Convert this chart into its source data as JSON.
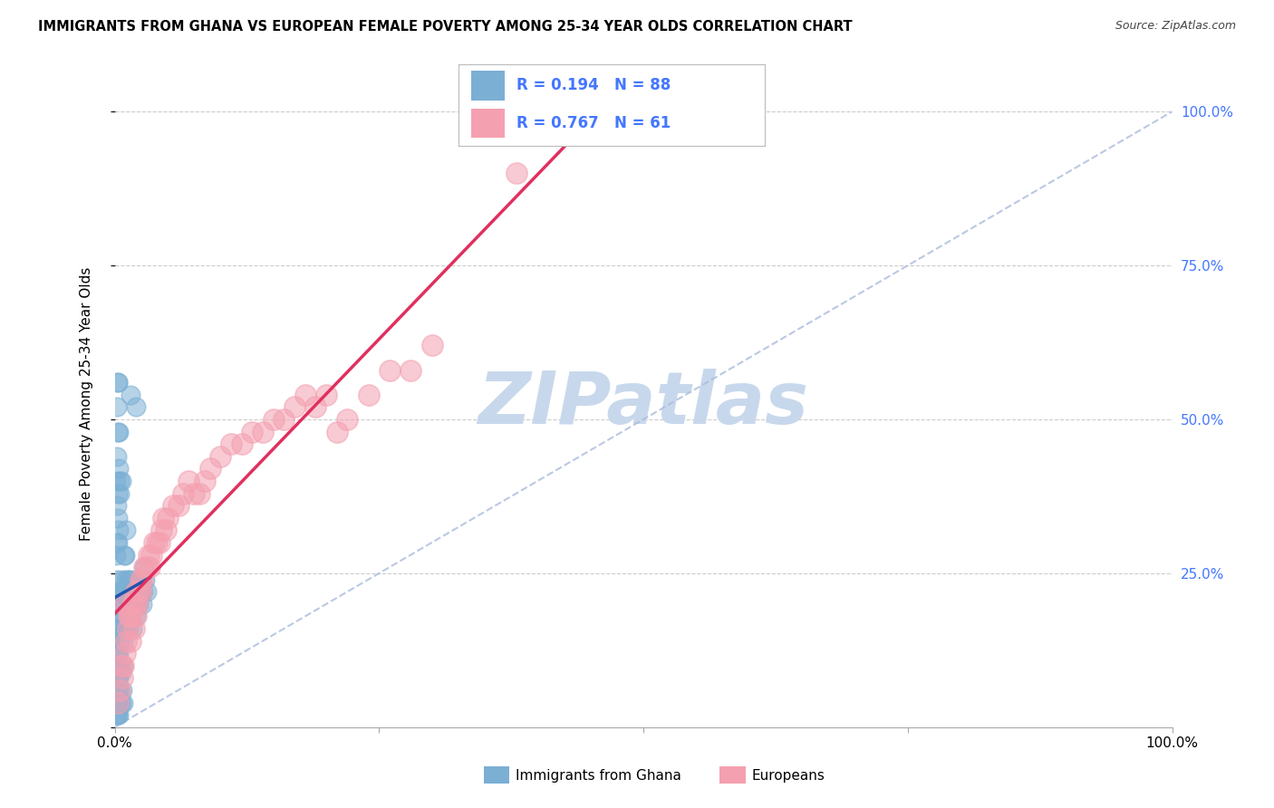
{
  "title": "IMMIGRANTS FROM GHANA VS EUROPEAN FEMALE POVERTY AMONG 25-34 YEAR OLDS CORRELATION CHART",
  "source": "Source: ZipAtlas.com",
  "ylabel": "Female Poverty Among 25-34 Year Olds",
  "legend_label_ghana": "Immigrants from Ghana",
  "legend_label_europeans": "Europeans",
  "r_ghana": 0.194,
  "n_ghana": 88,
  "r_europeans": 0.767,
  "n_europeans": 61,
  "color_ghana": "#7BAFD4",
  "color_europeans": "#F4A0B0",
  "color_ghana_line": "#2255AA",
  "color_europeans_line": "#E03060",
  "color_dashed": "#AABBDD",
  "watermark": "ZIPatlas",
  "watermark_color": "#C8D8EC",
  "ghana_points_x": [
    0.001,
    0.001,
    0.001,
    0.001,
    0.001,
    0.002,
    0.002,
    0.002,
    0.002,
    0.002,
    0.002,
    0.002,
    0.003,
    0.003,
    0.003,
    0.003,
    0.003,
    0.003,
    0.003,
    0.003,
    0.003,
    0.003,
    0.004,
    0.004,
    0.004,
    0.004,
    0.004,
    0.005,
    0.005,
    0.005,
    0.005,
    0.005,
    0.005,
    0.006,
    0.006,
    0.006,
    0.006,
    0.007,
    0.007,
    0.007,
    0.008,
    0.008,
    0.008,
    0.009,
    0.009,
    0.009,
    0.01,
    0.01,
    0.01,
    0.011,
    0.011,
    0.012,
    0.012,
    0.013,
    0.013,
    0.014,
    0.015,
    0.015,
    0.015,
    0.016,
    0.016,
    0.017,
    0.018,
    0.019,
    0.02,
    0.02,
    0.021,
    0.022,
    0.023,
    0.024,
    0.025,
    0.026,
    0.027,
    0.028,
    0.029,
    0.03,
    0.001,
    0.001,
    0.002,
    0.002,
    0.002,
    0.003,
    0.003,
    0.003,
    0.004,
    0.004,
    0.005,
    0.006
  ],
  "ghana_points_y": [
    0.08,
    0.12,
    0.16,
    0.2,
    0.28,
    0.1,
    0.16,
    0.2,
    0.24,
    0.3,
    0.36,
    0.44,
    0.06,
    0.08,
    0.12,
    0.18,
    0.22,
    0.3,
    0.34,
    0.38,
    0.48,
    0.56,
    0.04,
    0.08,
    0.12,
    0.32,
    0.42,
    0.04,
    0.06,
    0.1,
    0.14,
    0.22,
    0.38,
    0.04,
    0.09,
    0.15,
    0.22,
    0.06,
    0.18,
    0.24,
    0.04,
    0.1,
    0.14,
    0.18,
    0.22,
    0.28,
    0.16,
    0.2,
    0.28,
    0.24,
    0.32,
    0.16,
    0.18,
    0.22,
    0.24,
    0.2,
    0.18,
    0.24,
    0.54,
    0.2,
    0.22,
    0.16,
    0.22,
    0.2,
    0.18,
    0.52,
    0.22,
    0.24,
    0.2,
    0.22,
    0.24,
    0.2,
    0.22,
    0.26,
    0.24,
    0.22,
    0.02,
    0.4,
    0.02,
    0.06,
    0.52,
    0.02,
    0.04,
    0.56,
    0.02,
    0.48,
    0.4,
    0.4
  ],
  "european_points_x": [
    0.003,
    0.005,
    0.006,
    0.007,
    0.008,
    0.01,
    0.01,
    0.011,
    0.012,
    0.013,
    0.014,
    0.015,
    0.016,
    0.017,
    0.018,
    0.019,
    0.02,
    0.02,
    0.022,
    0.023,
    0.024,
    0.025,
    0.026,
    0.028,
    0.03,
    0.032,
    0.033,
    0.035,
    0.037,
    0.04,
    0.042,
    0.044,
    0.046,
    0.048,
    0.05,
    0.055,
    0.06,
    0.065,
    0.07,
    0.075,
    0.08,
    0.085,
    0.09,
    0.1,
    0.11,
    0.12,
    0.13,
    0.14,
    0.15,
    0.16,
    0.17,
    0.18,
    0.19,
    0.2,
    0.21,
    0.22,
    0.24,
    0.26,
    0.28,
    0.3,
    0.38
  ],
  "european_points_y": [
    0.04,
    0.06,
    0.1,
    0.08,
    0.1,
    0.12,
    0.2,
    0.14,
    0.16,
    0.18,
    0.18,
    0.14,
    0.18,
    0.2,
    0.16,
    0.2,
    0.18,
    0.22,
    0.2,
    0.22,
    0.24,
    0.22,
    0.24,
    0.26,
    0.26,
    0.28,
    0.26,
    0.28,
    0.3,
    0.3,
    0.3,
    0.32,
    0.34,
    0.32,
    0.34,
    0.36,
    0.36,
    0.38,
    0.4,
    0.38,
    0.38,
    0.4,
    0.42,
    0.44,
    0.46,
    0.46,
    0.48,
    0.48,
    0.5,
    0.5,
    0.52,
    0.54,
    0.52,
    0.54,
    0.48,
    0.5,
    0.54,
    0.58,
    0.58,
    0.62,
    0.9
  ],
  "xlim": [
    0.0,
    1.0
  ],
  "ylim": [
    0.0,
    1.05
  ]
}
